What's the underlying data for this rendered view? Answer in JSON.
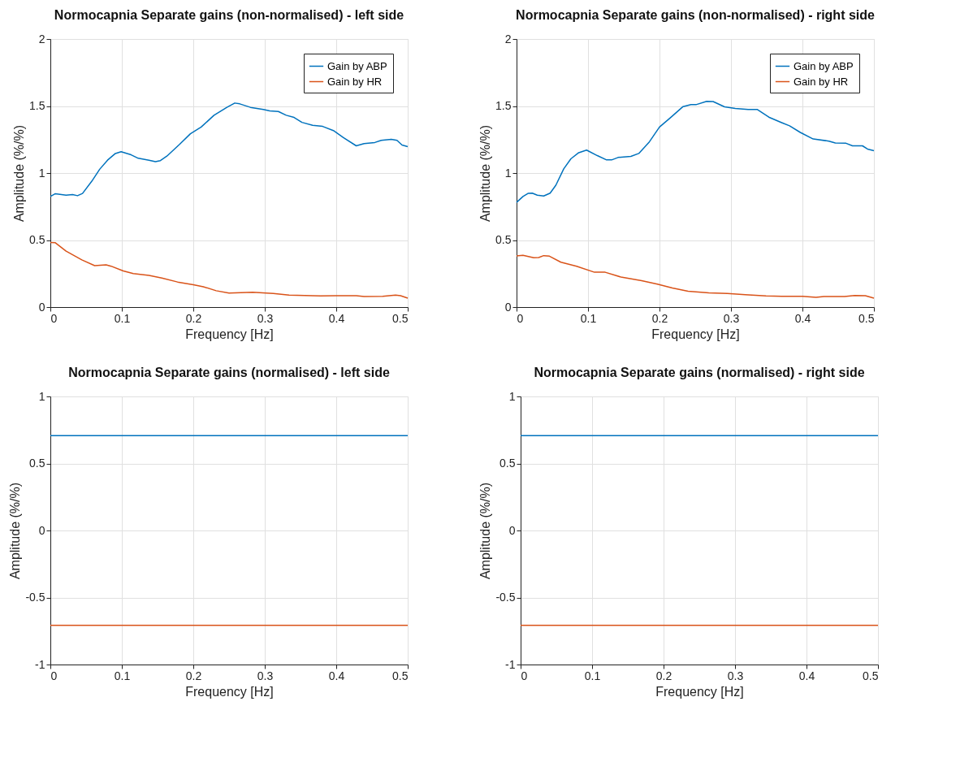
{
  "chart_data": [
    {
      "type": "line",
      "title": "Normocapnia Separate gains (non-normalised) - left side",
      "xlabel": "Frequency [Hz]",
      "ylabel": "Amplitude (%/%)",
      "xlim": [
        0,
        0.5
      ],
      "xticks": [
        0,
        0.1,
        0.2,
        0.3,
        0.4,
        0.5
      ],
      "ylim": [
        0,
        2
      ],
      "yticks": [
        0,
        0.5,
        1,
        1.5,
        2
      ],
      "grid": true,
      "legend": "top right",
      "line_style": "solid",
      "marker": "none",
      "series": [
        {
          "name": "Gain by ABP",
          "color": "#0072bd",
          "x": [
            0,
            0.007,
            0.022,
            0.031,
            0.038,
            0.045,
            0.058,
            0.069,
            0.08,
            0.091,
            0.099,
            0.113,
            0.123,
            0.138,
            0.147,
            0.154,
            0.163,
            0.181,
            0.196,
            0.211,
            0.229,
            0.247,
            0.258,
            0.265,
            0.28,
            0.298,
            0.307,
            0.319,
            0.33,
            0.341,
            0.352,
            0.367,
            0.381,
            0.396,
            0.41,
            0.428,
            0.439,
            0.454,
            0.463,
            0.477,
            0.485,
            0.492,
            0.5
          ],
          "values": [
            0.825,
            0.846,
            0.835,
            0.839,
            0.831,
            0.848,
            0.939,
            1.028,
            1.096,
            1.146,
            1.159,
            1.136,
            1.11,
            1.096,
            1.085,
            1.093,
            1.126,
            1.215,
            1.293,
            1.343,
            1.431,
            1.49,
            1.522,
            1.516,
            1.49,
            1.474,
            1.463,
            1.459,
            1.431,
            1.415,
            1.378,
            1.356,
            1.348,
            1.317,
            1.264,
            1.203,
            1.22,
            1.228,
            1.244,
            1.252,
            1.244,
            1.209,
            1.197
          ]
        },
        {
          "name": "Gain by HR",
          "color": "#d95319",
          "x": [
            0,
            0.007,
            0.022,
            0.044,
            0.062,
            0.078,
            0.085,
            0.102,
            0.116,
            0.138,
            0.156,
            0.178,
            0.2,
            0.214,
            0.232,
            0.25,
            0.283,
            0.312,
            0.334,
            0.356,
            0.378,
            0.399,
            0.428,
            0.439,
            0.465,
            0.483,
            0.49,
            0.5
          ],
          "values": [
            0.482,
            0.48,
            0.417,
            0.352,
            0.309,
            0.315,
            0.305,
            0.27,
            0.25,
            0.236,
            0.217,
            0.187,
            0.167,
            0.152,
            0.122,
            0.104,
            0.11,
            0.102,
            0.089,
            0.087,
            0.083,
            0.085,
            0.085,
            0.079,
            0.081,
            0.089,
            0.085,
            0.067
          ]
        }
      ]
    },
    {
      "type": "line",
      "title": "Normocapnia Separate gains (non-normalised) - right side",
      "xlabel": "Frequency [Hz]",
      "ylabel": "Amplitude (%/%)",
      "xlim": [
        0,
        0.5
      ],
      "xticks": [
        0,
        0.1,
        0.2,
        0.3,
        0.4,
        0.5
      ],
      "ylim": [
        0,
        2
      ],
      "yticks": [
        0,
        0.5,
        1,
        1.5,
        2
      ],
      "grid": true,
      "legend": "top right",
      "line_style": "solid",
      "marker": "none",
      "series": [
        {
          "name": "Gain by ABP",
          "color": "#0072bd",
          "x": [
            0,
            0.009,
            0.016,
            0.022,
            0.029,
            0.038,
            0.047,
            0.055,
            0.066,
            0.076,
            0.087,
            0.098,
            0.113,
            0.126,
            0.133,
            0.142,
            0.16,
            0.171,
            0.186,
            0.2,
            0.215,
            0.233,
            0.244,
            0.251,
            0.266,
            0.275,
            0.291,
            0.306,
            0.324,
            0.337,
            0.353,
            0.371,
            0.382,
            0.397,
            0.415,
            0.437,
            0.446,
            0.461,
            0.47,
            0.484,
            0.491,
            0.5
          ],
          "values": [
            0.781,
            0.825,
            0.848,
            0.85,
            0.835,
            0.829,
            0.85,
            0.909,
            1.031,
            1.106,
            1.152,
            1.171,
            1.13,
            1.098,
            1.098,
            1.116,
            1.124,
            1.146,
            1.234,
            1.343,
            1.411,
            1.496,
            1.51,
            1.51,
            1.535,
            1.533,
            1.494,
            1.482,
            1.474,
            1.474,
            1.417,
            1.376,
            1.352,
            1.303,
            1.254,
            1.238,
            1.224,
            1.222,
            1.203,
            1.203,
            1.179,
            1.167
          ]
        },
        {
          "name": "Gain by HR",
          "color": "#d95319",
          "x": [
            0,
            0.009,
            0.024,
            0.031,
            0.038,
            0.046,
            0.062,
            0.084,
            0.109,
            0.124,
            0.146,
            0.175,
            0.197,
            0.218,
            0.24,
            0.269,
            0.295,
            0.32,
            0.349,
            0.371,
            0.4,
            0.419,
            0.43,
            0.459,
            0.473,
            0.488,
            0.5
          ],
          "values": [
            0.382,
            0.386,
            0.368,
            0.37,
            0.384,
            0.38,
            0.335,
            0.305,
            0.26,
            0.26,
            0.224,
            0.197,
            0.171,
            0.142,
            0.118,
            0.106,
            0.102,
            0.093,
            0.083,
            0.081,
            0.081,
            0.073,
            0.079,
            0.079,
            0.087,
            0.085,
            0.067
          ]
        }
      ]
    },
    {
      "type": "line",
      "title": "Normocapnia Separate gains (normalised) - left side",
      "xlabel": "Frequency [Hz]",
      "ylabel": "Amplitude (%/%)",
      "xlim": [
        0,
        0.5
      ],
      "xticks": [
        0,
        0.1,
        0.2,
        0.3,
        0.4,
        0.5
      ],
      "ylim": [
        -1,
        1
      ],
      "yticks": [
        -1,
        -0.5,
        0,
        0.5,
        1
      ],
      "grid": true,
      "line_style": "solid",
      "marker": "none",
      "series": [
        {
          "color": "#0072bd",
          "x": [
            0,
            0.5
          ],
          "values": [
            0.707,
            0.707
          ]
        },
        {
          "color": "#d95319",
          "x": [
            0,
            0.5
          ],
          "values": [
            -0.707,
            -0.707
          ]
        }
      ]
    },
    {
      "type": "line",
      "title": "Normocapnia Separate gains (normalised) - right side",
      "xlabel": "Frequency [Hz]",
      "ylabel": "Amplitude (%/%)",
      "xlim": [
        0,
        0.5
      ],
      "xticks": [
        0,
        0.1,
        0.2,
        0.3,
        0.4,
        0.5
      ],
      "ylim": [
        -1,
        1
      ],
      "yticks": [
        -1,
        -0.5,
        0,
        0.5,
        1
      ],
      "grid": true,
      "line_style": "solid",
      "marker": "none",
      "series": [
        {
          "color": "#0072bd",
          "x": [
            0,
            0.5
          ],
          "values": [
            0.707,
            0.707
          ]
        },
        {
          "color": "#d95319",
          "x": [
            0,
            0.5
          ],
          "values": [
            -0.707,
            -0.707
          ]
        }
      ]
    }
  ]
}
